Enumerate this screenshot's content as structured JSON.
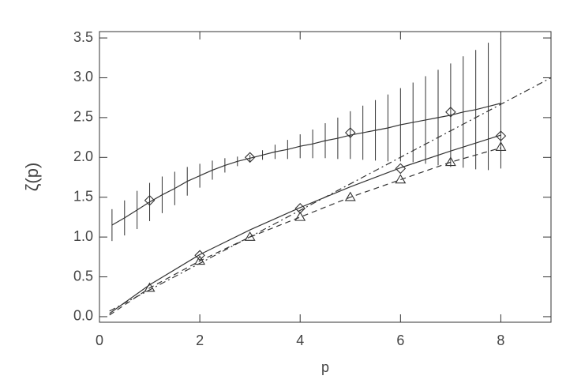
{
  "chart_data": {
    "type": "line",
    "x_label": "p",
    "y_label": "ζ(p)",
    "xlim": [
      0,
      9
    ],
    "ylim": [
      -0.07,
      3.58
    ],
    "xticks": [
      0,
      2,
      4,
      6,
      8
    ],
    "yticks": [
      {
        "value": 0,
        "label": "0.0"
      },
      {
        "value": 0.5,
        "label": "0.5"
      },
      {
        "value": 1,
        "label": "1.0"
      },
      {
        "value": 1.5,
        "label": "1.5"
      },
      {
        "value": 2,
        "label": "2.0"
      },
      {
        "value": 2.5,
        "label": "2.5"
      },
      {
        "value": 3,
        "label": "3.0"
      },
      {
        "value": 3.5,
        "label": "3.5"
      }
    ],
    "color": "#333333",
    "series": [
      {
        "style": "solid",
        "x": [
          0.25,
          0.5,
          0.75,
          1,
          1.25,
          1.5,
          1.75,
          2,
          2.25,
          2.5,
          2.75,
          3,
          3.25,
          3.5,
          3.75,
          4,
          4.25,
          4.5,
          4.75,
          5,
          5.25,
          5.5,
          5.75,
          6,
          6.25,
          6.5,
          6.75,
          7,
          7.25,
          7.5,
          7.75,
          8
        ],
        "values": [
          1.15,
          1.24,
          1.34,
          1.44,
          1.53,
          1.61,
          1.7,
          1.77,
          1.84,
          1.9,
          1.95,
          1.99,
          2.03,
          2.07,
          2.1,
          2.14,
          2.17,
          2.21,
          2.24,
          2.28,
          2.31,
          2.34,
          2.37,
          2.41,
          2.44,
          2.47,
          2.5,
          2.53,
          2.57,
          2.6,
          2.64,
          2.68
        ],
        "errors": [
          0.2,
          0.22,
          0.24,
          0.24,
          0.23,
          0.21,
          0.18,
          0.15,
          0.12,
          0.09,
          0.06,
          0.04,
          0.06,
          0.09,
          0.12,
          0.15,
          0.18,
          0.22,
          0.26,
          0.3,
          0.34,
          0.38,
          0.42,
          0.46,
          0.5,
          0.55,
          0.6,
          0.65,
          0.7,
          0.75,
          0.8,
          0.82
        ]
      },
      {
        "style": "solid",
        "x": [
          0.2,
          1,
          2,
          3,
          4,
          5,
          6,
          7,
          8
        ],
        "values": [
          0.04,
          0.4,
          0.78,
          1.09,
          1.37,
          1.63,
          1.87,
          2.08,
          2.28
        ]
      },
      {
        "style": "dashed",
        "x": [
          0.2,
          1,
          2,
          3,
          4,
          5,
          6,
          7,
          8
        ],
        "values": [
          0.02,
          0.36,
          0.7,
          1.0,
          1.25,
          1.5,
          1.72,
          1.94,
          2.12
        ]
      },
      {
        "style": "dashdot",
        "x": [
          0.2,
          9
        ],
        "values": [
          0.07,
          3.0
        ]
      },
      {
        "style": "none",
        "marker": "diamond",
        "x": [
          1,
          3,
          5,
          7
        ],
        "values": [
          1.46,
          2.0,
          2.31,
          2.57
        ]
      },
      {
        "style": "none",
        "marker": "diamond",
        "x": [
          2,
          4,
          6,
          8
        ],
        "values": [
          0.77,
          1.36,
          1.86,
          2.27
        ]
      },
      {
        "style": "none",
        "marker": "triangle",
        "x": [
          1,
          2,
          3,
          4,
          5,
          6,
          7,
          8
        ],
        "values": [
          0.36,
          0.7,
          1.0,
          1.25,
          1.5,
          1.72,
          1.94,
          2.13
        ]
      }
    ]
  }
}
